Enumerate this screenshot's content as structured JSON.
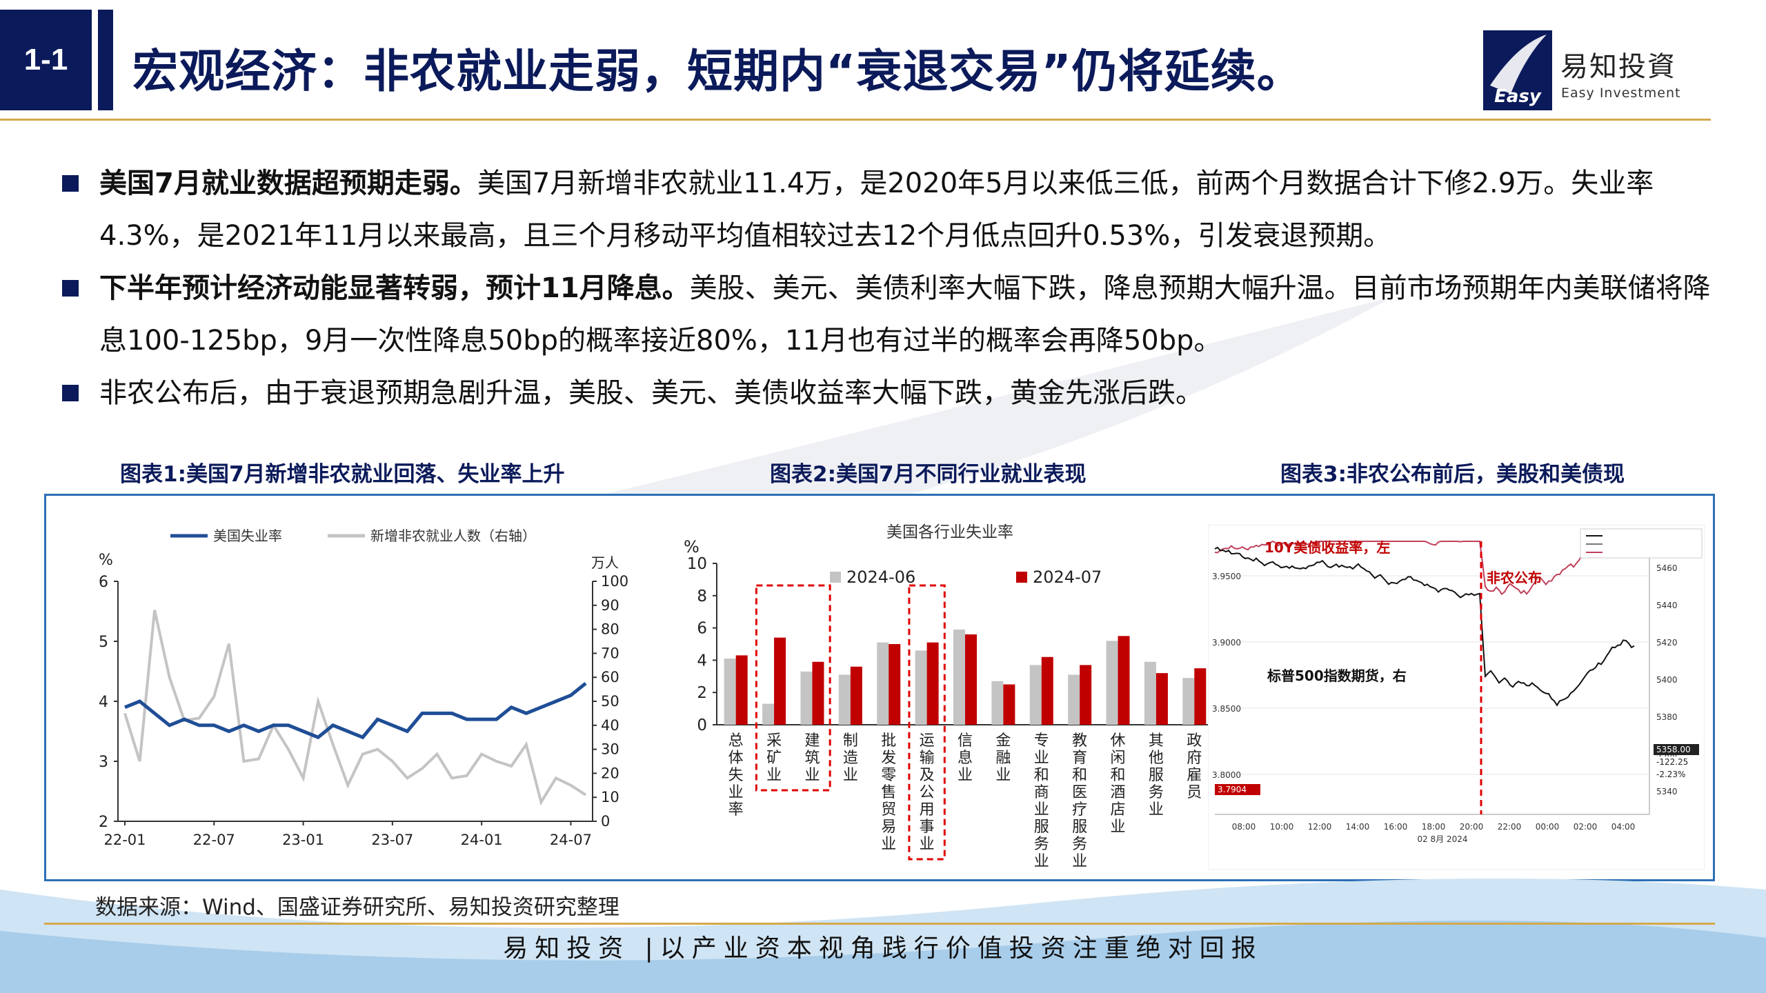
{
  "header": {
    "section_number": "1-1",
    "title": "宏观经济：非农就业走弱，短期内“衰退交易”仍将延续。",
    "logo_cn": "易知投資",
    "logo_en": "Easy Investment",
    "logo_mark_text": "Easy"
  },
  "bullets": [
    {
      "bold": "美国7月就业数据超预期走弱。",
      "text": "美国7月新增非农就业11.4万，是2020年5月以来低三低，前两个月数据合计下修2.9万。失业率4.3%，是2021年11月以来最高，且三个月移动平均值相较过去12个月低点回升0.53%，引发衰退预期。"
    },
    {
      "bold": "下半年预计经济动能显著转弱，预计11月降息。",
      "text": "美股、美元、美债利率大幅下跌，降息预期大幅升温。目前市场预期年内美联储将降息100-125bp，9月一次性降息50bp的概率接近80%，11月也有过半的概率会再降50bp。"
    },
    {
      "bold": "",
      "text": "非农公布后，由于衰退预期急剧升温，美股、美元、美债收益率大幅下跌，黄金先涨后跌。"
    }
  ],
  "captions": {
    "chart1": "图表1:美国7月新增非农就业回落、失业率上升",
    "chart2": "图表2:美国7月不同行业就业表现",
    "chart3": "图表3:非农公布前后，美股和美债现"
  },
  "source": "数据来源：Wind、国盛证券研究所、易知投资研究整理",
  "footer": "易知投资 |以产业资本视角践行价值投资注重绝对回报",
  "colors": {
    "navy": "#0b1a5a",
    "gold": "#d4a84a",
    "blue_series": "#1f4e96",
    "gray_series": "#c4c4c4",
    "red": "#c00000"
  },
  "chart_data": [
    {
      "type": "line",
      "series": [
        {
          "name": "美国失业率",
          "axis": "left",
          "values": [
            3.9,
            4.0,
            3.8,
            3.6,
            3.7,
            3.6,
            3.6,
            3.5,
            3.6,
            3.5,
            3.6,
            3.6,
            3.5,
            3.4,
            3.6,
            3.5,
            3.4,
            3.7,
            3.6,
            3.5,
            3.8,
            3.8,
            3.8,
            3.7,
            3.7,
            3.7,
            3.9,
            3.8,
            3.9,
            4.0,
            4.1,
            4.3
          ]
        },
        {
          "name": "新增非农就业人数（右轴）",
          "axis": "right",
          "values": [
            45,
            25,
            88,
            60,
            42,
            43,
            52,
            74,
            25,
            26,
            40,
            30,
            18,
            50,
            32,
            15,
            28,
            30,
            25,
            18,
            22,
            28,
            18,
            19,
            28,
            25,
            23,
            32,
            8,
            18,
            15,
            11
          ]
        }
      ],
      "x_ticks": [
        "22-01",
        "22-07",
        "23-01",
        "23-07",
        "24-01",
        "24-07"
      ],
      "y_left_label": "%",
      "y_left_ticks": [
        "6",
        "5",
        "4",
        "3",
        "2"
      ],
      "y_left_lim": [
        2,
        6
      ],
      "y_right_label": "万人",
      "y_right_ticks": [
        "100",
        "90",
        "80",
        "70",
        "60",
        "50",
        "40",
        "30",
        "20",
        "10",
        "0"
      ],
      "y_right_lim": [
        0,
        100
      ],
      "legend": "top"
    },
    {
      "type": "bar",
      "title": "美国各行业失业率",
      "ylabel": "%",
      "ylim": [
        0,
        10
      ],
      "y_ticks": [
        "10",
        "8",
        "6",
        "4",
        "2",
        "0"
      ],
      "categories": [
        "总体失业率",
        "采矿业",
        "建筑业",
        "制造业",
        "批发零售贸易业",
        "运输及公用事业",
        "信息业",
        "金融业",
        "专业和商业服务业",
        "教育和医疗服务业",
        "休闲和酒店业",
        "其他服务业",
        "政府雇员"
      ],
      "series": [
        {
          "name": "2024-06",
          "values": [
            4.1,
            1.3,
            3.3,
            3.1,
            5.1,
            4.6,
            5.9,
            2.7,
            3.7,
            3.1,
            5.2,
            3.9,
            2.9
          ]
        },
        {
          "name": "2024-07",
          "values": [
            4.3,
            5.4,
            3.9,
            3.6,
            5.0,
            5.1,
            5.6,
            2.5,
            4.2,
            3.7,
            5.5,
            3.2,
            3.5
          ]
        }
      ],
      "highlighted": [
        "采矿业",
        "建筑业",
        "运输及公用事业"
      ],
      "legend": "top-left"
    },
    {
      "type": "line",
      "annotations": [
        "10Y美债收益率，左",
        "非农公布",
        "标普500指数期货，右"
      ],
      "x_ticks": [
        "08:00",
        "10:00",
        "12:00",
        "14:00",
        "16:00",
        "18:00",
        "20:00",
        "22:00",
        "00:00",
        "02:00",
        "04:00"
      ],
      "y_left_ticks": [
        "3.9500",
        "3.9000",
        "3.8500",
        "3.8000"
      ],
      "y_right_ticks": [
        "5460",
        "5440",
        "5420",
        "5400",
        "5380",
        "5360",
        "5340"
      ],
      "price_tags": [
        "3.7904",
        "5358.00",
        "-122.25",
        "-2.23%"
      ],
      "date_label": "02 8月 2024"
    }
  ]
}
